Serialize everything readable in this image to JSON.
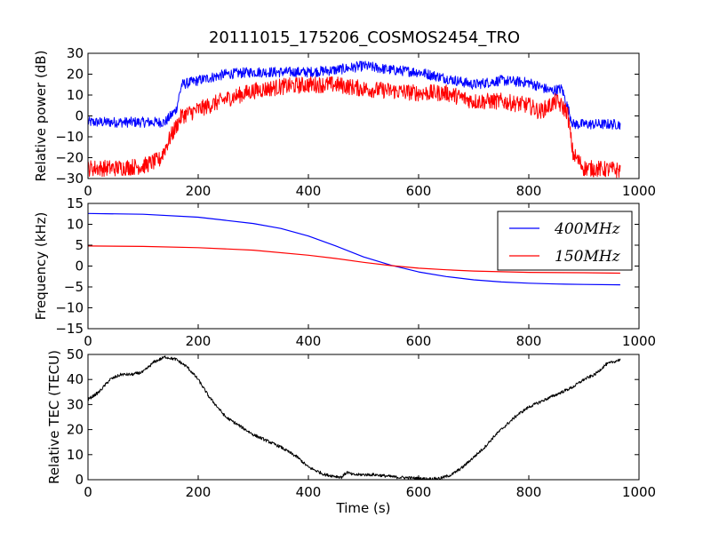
{
  "figure": {
    "title": "20111015_175206_COSMOS2454_TRO"
  },
  "chart_data": [
    {
      "type": "line",
      "ylabel": "Relative power (dB)",
      "xlabel": "",
      "xlim": [
        0,
        1000
      ],
      "ylim": [
        -30,
        30
      ],
      "xticks": [
        "0",
        "200",
        "400",
        "600",
        "800",
        "1000"
      ],
      "yticks": [
        "30",
        "20",
        "10",
        "0",
        "−10",
        "−20",
        "−30"
      ],
      "series": [
        {
          "color": "#0000ff",
          "x": [
            0,
            50,
            100,
            140,
            160,
            170,
            200,
            250,
            300,
            350,
            400,
            450,
            500,
            550,
            600,
            650,
            700,
            750,
            800,
            840,
            860,
            880,
            900,
            966
          ],
          "y": [
            -3,
            -3,
            -3,
            -3,
            3,
            15,
            17,
            20,
            21,
            21,
            21,
            22,
            24,
            22,
            21,
            18,
            15,
            17,
            16,
            12,
            13,
            -4,
            -4,
            -4
          ],
          "noise": 2.5
        },
        {
          "color": "#ff0000",
          "x": [
            0,
            50,
            100,
            130,
            150,
            170,
            200,
            250,
            300,
            350,
            400,
            450,
            500,
            550,
            600,
            650,
            700,
            750,
            800,
            820,
            850,
            870,
            880,
            900,
            966
          ],
          "y": [
            -25,
            -25,
            -24,
            -21,
            -10,
            0,
            3,
            8,
            12,
            14,
            15,
            15,
            13,
            12,
            11,
            11,
            7,
            7,
            5,
            2,
            7,
            2,
            -18,
            -25,
            -26
          ],
          "noise": 4
        }
      ]
    },
    {
      "type": "line",
      "ylabel": "Frequency (kHz)",
      "xlabel": "",
      "xlim": [
        0,
        1000
      ],
      "ylim": [
        -15,
        15
      ],
      "xticks": [
        "0",
        "200",
        "400",
        "600",
        "800",
        "1000"
      ],
      "yticks": [
        "15",
        "10",
        "5",
        "0",
        "−5",
        "−10",
        "−15"
      ],
      "legend_position": "top-right",
      "series": [
        {
          "name": "400MHz",
          "color": "#0000ff",
          "x": [
            0,
            100,
            200,
            300,
            350,
            400,
            450,
            500,
            550,
            600,
            650,
            700,
            750,
            800,
            850,
            900,
            966
          ],
          "y": [
            12.6,
            12.4,
            11.7,
            10.2,
            9.0,
            7.2,
            4.8,
            2.2,
            0.2,
            -1.4,
            -2.5,
            -3.3,
            -3.8,
            -4.1,
            -4.3,
            -4.4,
            -4.5
          ]
        },
        {
          "name": "150MHz",
          "color": "#ff0000",
          "x": [
            0,
            100,
            200,
            300,
            400,
            450,
            500,
            550,
            600,
            650,
            700,
            800,
            900,
            966
          ],
          "y": [
            4.8,
            4.7,
            4.4,
            3.8,
            2.6,
            1.8,
            0.9,
            0.1,
            -0.5,
            -0.9,
            -1.2,
            -1.5,
            -1.6,
            -1.7
          ]
        }
      ]
    },
    {
      "type": "line",
      "ylabel": "Relative TEC (TECU)",
      "xlabel": "Time (s)",
      "xlim": [
        0,
        1000
      ],
      "ylim": [
        0,
        50
      ],
      "xticks": [
        "0",
        "200",
        "400",
        "600",
        "800",
        "1000"
      ],
      "yticks": [
        "50",
        "40",
        "30",
        "20",
        "10",
        "0"
      ],
      "series": [
        {
          "color": "#000000",
          "x": [
            0,
            20,
            40,
            60,
            80,
            100,
            120,
            140,
            160,
            180,
            200,
            220,
            250,
            300,
            350,
            380,
            400,
            430,
            460,
            470,
            480,
            500,
            520,
            540,
            560,
            580,
            600,
            620,
            640,
            660,
            680,
            700,
            720,
            740,
            760,
            780,
            800,
            820,
            840,
            860,
            880,
            900,
            920,
            940,
            966
          ],
          "y": [
            32,
            35,
            40,
            42,
            42,
            43,
            47,
            49,
            48,
            45,
            40,
            33,
            25,
            18,
            13,
            9,
            5,
            2,
            1,
            3,
            2,
            2,
            2,
            1.5,
            1,
            0.8,
            0.5,
            0.3,
            0.6,
            2,
            5,
            9,
            13,
            18,
            22,
            26,
            29,
            31,
            33,
            35,
            37,
            40,
            42,
            46,
            48
          ],
          "noise": 0.6
        }
      ]
    }
  ]
}
